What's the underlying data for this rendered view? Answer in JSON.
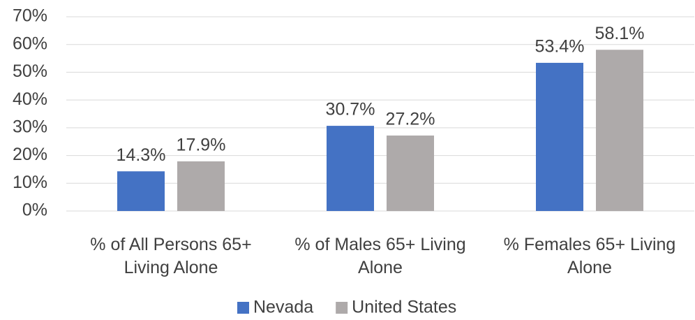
{
  "chart_data": {
    "type": "bar",
    "categories": [
      "% of All Persons 65+ Living Alone",
      "% of Males 65+ Living Alone",
      "% Females 65+ Living Alone"
    ],
    "series": [
      {
        "name": "Nevada",
        "color": "#4472c4",
        "values": [
          14.3,
          30.7,
          53.4
        ],
        "value_labels": [
          "14.3%",
          "30.7%",
          "53.4%"
        ]
      },
      {
        "name": "United States",
        "color": "#aeaaaa",
        "values": [
          17.9,
          27.2,
          58.1
        ],
        "value_labels": [
          "17.9%",
          "27.2%",
          "58.1%"
        ]
      }
    ],
    "ylim": [
      0,
      70
    ],
    "yticks": [
      {
        "value": 0,
        "label": "0%"
      },
      {
        "value": 10,
        "label": "10%"
      },
      {
        "value": 20,
        "label": "20%"
      },
      {
        "value": 30,
        "label": "30%"
      },
      {
        "value": 40,
        "label": "40%"
      },
      {
        "value": 50,
        "label": "50%"
      },
      {
        "value": 60,
        "label": "60%"
      },
      {
        "value": 70,
        "label": "70%"
      }
    ],
    "grid": true,
    "legend": "bottom"
  }
}
